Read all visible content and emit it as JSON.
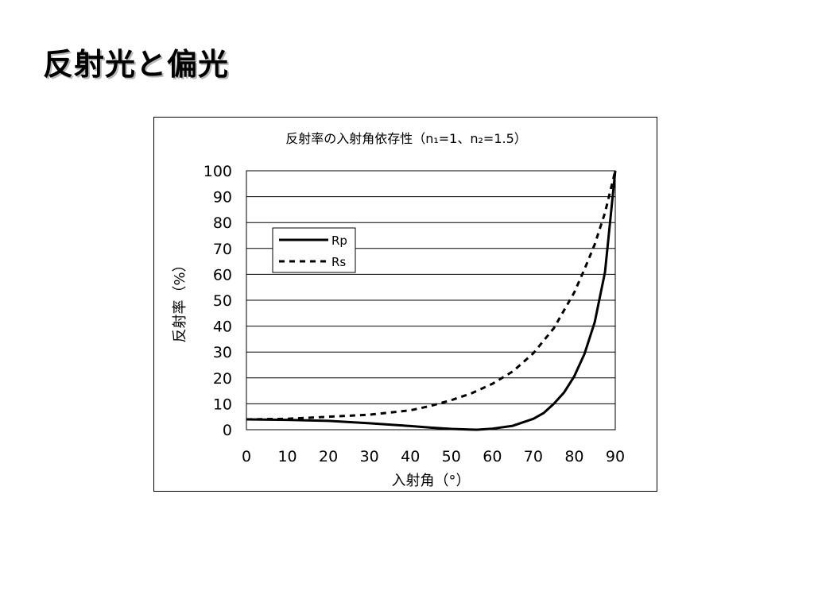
{
  "slide": {
    "title": "反射光と偏光"
  },
  "chart_data": {
    "type": "line",
    "title": "反射率の入射角依存性（n₁=1、n₂=1.5）",
    "xlabel": "入射角（°）",
    "ylabel": "反射率（%）",
    "xlim": [
      0,
      90
    ],
    "ylim": [
      0,
      100
    ],
    "xticks": [
      "0",
      "10",
      "20",
      "30",
      "40",
      "50",
      "60",
      "70",
      "80",
      "90"
    ],
    "yticks": [
      "0",
      "10",
      "20",
      "30",
      "40",
      "50",
      "60",
      "70",
      "80",
      "90",
      "100"
    ],
    "grid": "horizontal",
    "legend_position": "upper-left",
    "series": [
      {
        "name": "Rp",
        "style": "solid",
        "x": [
          0,
          10,
          20,
          30,
          40,
          45,
          50,
          55,
          56.3,
          60,
          65,
          70,
          72.5,
          75,
          77.5,
          80,
          82.5,
          85,
          87.5,
          90
        ],
        "y": [
          4.0,
          3.8,
          3.4,
          2.5,
          1.4,
          0.8,
          0.3,
          0.02,
          0,
          0.4,
          1.5,
          4.2,
          6.4,
          10.0,
          14.4,
          20.6,
          29.3,
          41.6,
          60.9,
          100
        ]
      },
      {
        "name": "Rs",
        "style": "dashed",
        "x": [
          0,
          10,
          20,
          30,
          40,
          45,
          50,
          55,
          60,
          65,
          70,
          75,
          80,
          82.5,
          85,
          87.5,
          90
        ],
        "y": [
          4.0,
          4.2,
          5.0,
          5.8,
          7.5,
          9.2,
          11.4,
          14.1,
          17.7,
          22.5,
          29.5,
          39.2,
          53.0,
          62.0,
          71.6,
          83.8,
          100
        ]
      }
    ]
  }
}
